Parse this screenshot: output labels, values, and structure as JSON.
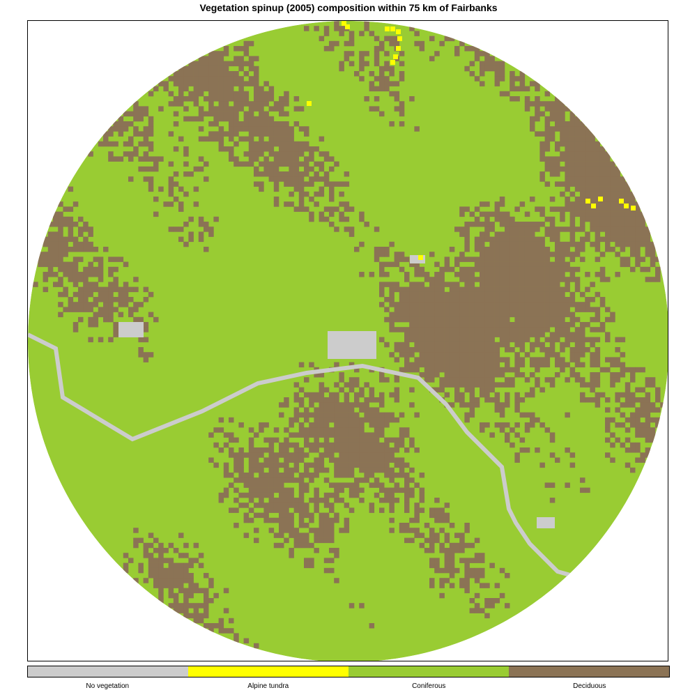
{
  "title": "Vegetation spinup (2005) composition within 75 km of Fairbanks",
  "legend": {
    "items": [
      {
        "label": "No vegetation",
        "color": "#cccccc"
      },
      {
        "label": "Alpine tundra",
        "color": "#ffff00"
      },
      {
        "label": "Coniferous",
        "color": "#99cc33"
      },
      {
        "label": "Deciduous",
        "color": "#8b7355"
      }
    ]
  },
  "colors": {
    "no_vegetation": "#cccccc",
    "alpine_tundra": "#ffff00",
    "coniferous": "#99cc33",
    "deciduous": "#8b7355"
  }
}
